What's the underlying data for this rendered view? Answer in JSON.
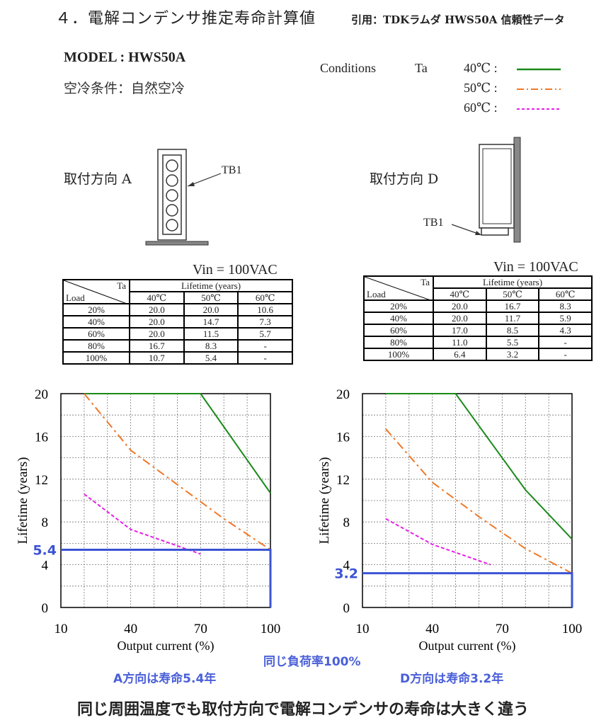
{
  "header": {
    "title": "４．電解コンデンサ推定寿命計算値",
    "source": "引用：TDKラムダ HWS50A 信頼性データ"
  },
  "model": "MODEL : HWS50A",
  "cooling": "空冷条件：自然空冷",
  "conditions": {
    "label": "Conditions",
    "ta": "Ta",
    "items": [
      {
        "temp": "40℃ :",
        "color": "#1a8a1a",
        "style": "solid"
      },
      {
        "temp": "50℃ :",
        "color": "#f07828",
        "style": "dash-dot"
      },
      {
        "temp": "60℃ :",
        "color": "#e620e6",
        "style": "dashed"
      }
    ]
  },
  "mounting": {
    "a_label": "取付方向 A",
    "d_label": "取付方向 D",
    "tb1": "TB1"
  },
  "tables": [
    {
      "vin": "Vin = 100VAC",
      "ta": "Ta",
      "load": "Load",
      "lifetime": "Lifetime (years)",
      "temps": [
        "40℃",
        "50℃",
        "60℃"
      ],
      "rows": [
        {
          "load": "20%",
          "v": [
            "20.0",
            "20.0",
            "10.6"
          ]
        },
        {
          "load": "40%",
          "v": [
            "20.0",
            "14.7",
            "7.3"
          ]
        },
        {
          "load": "60%",
          "v": [
            "20.0",
            "11.5",
            "5.7"
          ]
        },
        {
          "load": "80%",
          "v": [
            "16.7",
            "8.3",
            "-"
          ]
        },
        {
          "load": "100%",
          "v": [
            "10.7",
            "5.4",
            "-"
          ]
        }
      ]
    },
    {
      "vin": "Vin = 100VAC",
      "ta": "Ta",
      "load": "Load",
      "lifetime": "Lifetime (years)",
      "temps": [
        "40℃",
        "50℃",
        "60℃"
      ],
      "rows": [
        {
          "load": "20%",
          "v": [
            "20.0",
            "16.7",
            "8.3"
          ]
        },
        {
          "load": "40%",
          "v": [
            "20.0",
            "11.7",
            "5.9"
          ]
        },
        {
          "load": "60%",
          "v": [
            "17.0",
            "8.5",
            "4.3"
          ]
        },
        {
          "load": "80%",
          "v": [
            "11.0",
            "5.5",
            "-"
          ]
        },
        {
          "load": "100%",
          "v": [
            "6.4",
            "3.2",
            "-"
          ]
        }
      ]
    }
  ],
  "chart_data": [
    {
      "type": "line",
      "xlabel": "Output current (%)",
      "ylabel": "Lifetime (years)",
      "xlim": [
        10,
        100
      ],
      "ylim": [
        0,
        20
      ],
      "xticks": [
        "10",
        "40",
        "70",
        "100"
      ],
      "yticks": [
        "0",
        "4",
        "8",
        "12",
        "16",
        "20"
      ],
      "grid": true,
      "series": [
        {
          "color": "#1a8a1a",
          "style": "solid",
          "points": [
            [
              20,
              20
            ],
            [
              70,
              20
            ],
            [
              100,
              10.7
            ]
          ]
        },
        {
          "color": "#f07828",
          "style": "dash-dot",
          "points": [
            [
              20,
              20
            ],
            [
              40,
              14.7
            ],
            [
              60,
              11.5
            ],
            [
              80,
              8.3
            ],
            [
              100,
              5.4
            ]
          ]
        },
        {
          "color": "#e620e6",
          "style": "dashed",
          "points": [
            [
              20,
              10.6
            ],
            [
              40,
              7.3
            ],
            [
              70,
              5.0
            ]
          ]
        }
      ],
      "marker": {
        "value": 5.4,
        "x": 100,
        "label": "5.4",
        "color": "#3b53d4"
      }
    },
    {
      "type": "line",
      "xlabel": "Output current (%)",
      "ylabel": "Lifetime (years)",
      "xlim": [
        10,
        100
      ],
      "ylim": [
        0,
        20
      ],
      "xticks": [
        "10",
        "40",
        "70",
        "100"
      ],
      "yticks": [
        "0",
        "4",
        "8",
        "12",
        "16",
        "20"
      ],
      "grid": true,
      "series": [
        {
          "color": "#1a8a1a",
          "style": "solid",
          "points": [
            [
              20,
              20
            ],
            [
              50,
              20
            ],
            [
              60,
              17.0
            ],
            [
              80,
              11.0
            ],
            [
              100,
              6.4
            ]
          ]
        },
        {
          "color": "#f07828",
          "style": "dash-dot",
          "points": [
            [
              20,
              16.7
            ],
            [
              40,
              11.7
            ],
            [
              60,
              8.5
            ],
            [
              80,
              5.5
            ],
            [
              100,
              3.2
            ]
          ]
        },
        {
          "color": "#e620e6",
          "style": "dashed",
          "points": [
            [
              20,
              8.3
            ],
            [
              40,
              5.9
            ],
            [
              65,
              4.0
            ]
          ]
        }
      ],
      "marker": {
        "value": 3.2,
        "x": 100,
        "label": "3.2",
        "color": "#3b53d4"
      }
    }
  ],
  "captions": {
    "center": "同じ負荷率100%",
    "left": "A方向は寿命5.4年",
    "right": "D方向は寿命3.2年"
  },
  "bottom_message": "同じ周囲温度でも取付方向で電解コンデンサの寿命は大きく違う"
}
